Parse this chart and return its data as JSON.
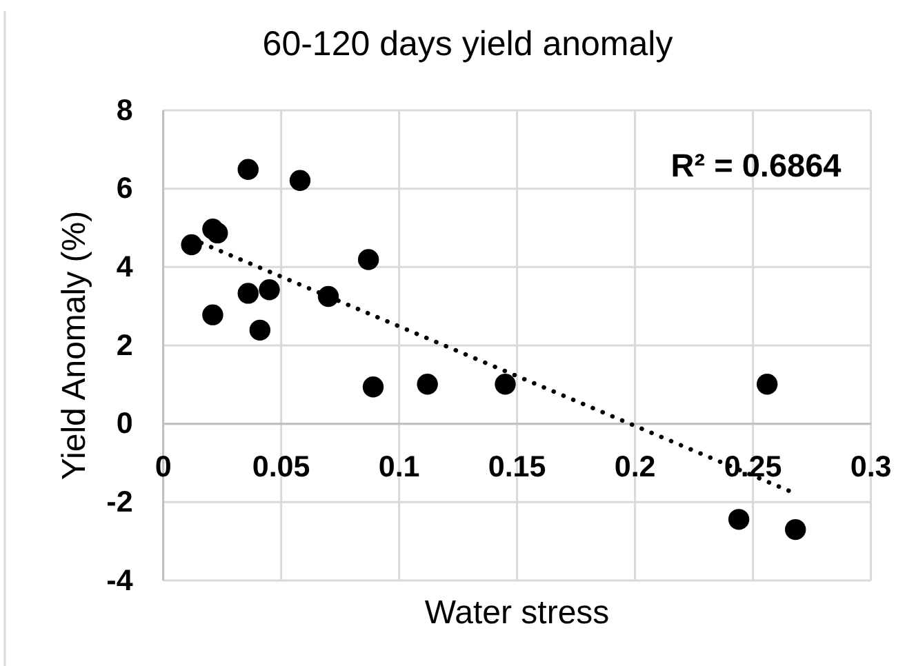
{
  "chart_data": {
    "type": "scatter",
    "title": "60-120 days yield anomaly",
    "xlabel": "Water stress",
    "ylabel": "Yield Anomaly (%)",
    "xlim": [
      0,
      0.3
    ],
    "ylim": [
      -4,
      8
    ],
    "xticks": [
      0,
      0.05,
      0.1,
      0.15,
      0.2,
      0.25,
      0.3
    ],
    "yticks": [
      -4,
      -2,
      0,
      2,
      4,
      6,
      8
    ],
    "grid": true,
    "marker": "circle",
    "line_style": "dotted",
    "annotations": [
      "R² = 0.6864"
    ],
    "series": [
      {
        "color": "#000000",
        "x": [
          0.012,
          0.021,
          0.023,
          0.036,
          0.058,
          0.021,
          0.036,
          0.045,
          0.041,
          0.07,
          0.087,
          0.089,
          0.112,
          0.145,
          0.256,
          0.244,
          0.268
        ],
        "values": [
          4.57,
          4.97,
          4.87,
          6.49,
          6.21,
          2.78,
          3.33,
          3.42,
          2.39,
          3.25,
          4.19,
          0.94,
          1.01,
          1.01,
          1.01,
          -2.44,
          -2.7
        ]
      },
      {
        "type": "line",
        "color": "#000000",
        "marker": "none",
        "x": [
          0.012,
          0.268
        ],
        "values": [
          4.72,
          -1.78
        ]
      }
    ]
  }
}
